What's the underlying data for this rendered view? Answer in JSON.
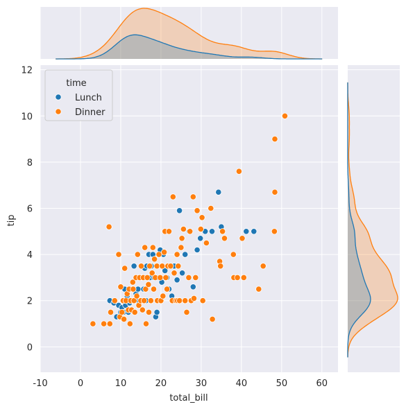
{
  "chart_data": {
    "type": "scatter",
    "kind": "jointplot",
    "xlabel": "total_bill",
    "ylabel": "tip",
    "xlim": [
      -10,
      64
    ],
    "ylim": [
      -1.1,
      12.2
    ],
    "xticks": [
      -10,
      0,
      10,
      20,
      30,
      40,
      50,
      60
    ],
    "yticks": [
      0,
      2,
      4,
      6,
      8,
      10,
      12
    ],
    "grid": true,
    "legend": {
      "title": "time",
      "placement": "top-left",
      "entries": [
        "Lunch",
        "Dinner"
      ]
    },
    "colors": {
      "Lunch": "#1f77b4",
      "Dinner": "#ff7f0e",
      "background": "#eaeaf2",
      "grid": "#ffffff"
    },
    "series": [
      {
        "name": "Lunch",
        "points": [
          [
            7.3,
            2.0
          ],
          [
            8.3,
            1.9
          ],
          [
            9.0,
            1.3
          ],
          [
            9.5,
            1.8
          ],
          [
            10.0,
            1.5
          ],
          [
            10.3,
            1.7
          ],
          [
            10.5,
            2.0
          ],
          [
            10.7,
            1.5
          ],
          [
            11.0,
            2.5
          ],
          [
            11.2,
            1.8
          ],
          [
            11.4,
            2.0
          ],
          [
            11.6,
            2.2
          ],
          [
            11.9,
            1.5
          ],
          [
            12.0,
            2.0
          ],
          [
            12.2,
            1.9
          ],
          [
            12.4,
            2.5
          ],
          [
            12.6,
            1.6
          ],
          [
            12.9,
            2.0
          ],
          [
            13.0,
            2.0
          ],
          [
            13.3,
            3.5
          ],
          [
            13.5,
            2.0
          ],
          [
            13.8,
            2.3
          ],
          [
            14.0,
            2.0
          ],
          [
            14.3,
            2.5
          ],
          [
            14.5,
            2.0
          ],
          [
            15.0,
            2.0
          ],
          [
            15.4,
            3.0
          ],
          [
            15.7,
            2.5
          ],
          [
            16.0,
            3.4
          ],
          [
            16.3,
            2.0
          ],
          [
            16.5,
            3.5
          ],
          [
            17.0,
            4.0
          ],
          [
            17.3,
            3.0
          ],
          [
            17.6,
            3.5
          ],
          [
            18.0,
            4.0
          ],
          [
            18.3,
            3.0
          ],
          [
            18.7,
            1.3
          ],
          [
            19.0,
            1.5
          ],
          [
            19.4,
            3.0
          ],
          [
            19.8,
            4.2
          ],
          [
            20.2,
            2.8
          ],
          [
            20.6,
            4.0
          ],
          [
            21.0,
            3.3
          ],
          [
            21.5,
            3.0
          ],
          [
            22.0,
            2.5
          ],
          [
            22.7,
            2.2
          ],
          [
            23.3,
            3.5
          ],
          [
            24.0,
            2.9
          ],
          [
            24.6,
            5.9
          ],
          [
            25.3,
            3.2
          ],
          [
            26.0,
            4.0
          ],
          [
            27.0,
            5.0
          ],
          [
            28.0,
            2.6
          ],
          [
            29.0,
            4.2
          ],
          [
            29.8,
            4.7
          ],
          [
            31.0,
            5.0
          ],
          [
            32.7,
            5.0
          ],
          [
            34.3,
            6.7
          ],
          [
            35.0,
            5.2
          ],
          [
            41.2,
            5.0
          ],
          [
            43.1,
            5.0
          ]
        ]
      },
      {
        "name": "Dinner",
        "points": [
          [
            3.1,
            1.0
          ],
          [
            5.8,
            1.0
          ],
          [
            7.1,
            5.2
          ],
          [
            7.3,
            1.0
          ],
          [
            7.5,
            1.5
          ],
          [
            8.5,
            2.0
          ],
          [
            9.5,
            4.0
          ],
          [
            9.8,
            1.3
          ],
          [
            10.0,
            2.6
          ],
          [
            10.3,
            1.5
          ],
          [
            10.6,
            2.0
          ],
          [
            10.8,
            1.2
          ],
          [
            11.0,
            3.4
          ],
          [
            11.3,
            2.0
          ],
          [
            11.6,
            2.3
          ],
          [
            11.9,
            1.6
          ],
          [
            12.1,
            2.5
          ],
          [
            12.3,
            1.0
          ],
          [
            12.5,
            2.0
          ],
          [
            12.7,
            1.6
          ],
          [
            13.0,
            2.8
          ],
          [
            13.1,
            2.5
          ],
          [
            13.3,
            2.0
          ],
          [
            13.5,
            1.5
          ],
          [
            13.8,
            3.0
          ],
          [
            14.0,
            2.2
          ],
          [
            14.2,
            4.0
          ],
          [
            14.5,
            1.8
          ],
          [
            14.7,
            3.0
          ],
          [
            15.0,
            2.0
          ],
          [
            15.1,
            3.5
          ],
          [
            15.4,
            1.6
          ],
          [
            15.6,
            3.0
          ],
          [
            15.8,
            2.0
          ],
          [
            16.0,
            4.3
          ],
          [
            16.2,
            2.5
          ],
          [
            16.3,
            1.0
          ],
          [
            16.6,
            3.0
          ],
          [
            16.9,
            2.7
          ],
          [
            17.0,
            1.5
          ],
          [
            17.2,
            3.5
          ],
          [
            17.5,
            2.0
          ],
          [
            17.8,
            3.2
          ],
          [
            18.0,
            4.3
          ],
          [
            18.2,
            2.5
          ],
          [
            18.4,
            3.8
          ],
          [
            18.6,
            3.0
          ],
          [
            19.0,
            3.5
          ],
          [
            19.1,
            2.0
          ],
          [
            19.5,
            4.0
          ],
          [
            19.8,
            3.0
          ],
          [
            20.0,
            2.0
          ],
          [
            20.3,
            3.5
          ],
          [
            20.5,
            2.2
          ],
          [
            20.8,
            4.1
          ],
          [
            21.0,
            5.0
          ],
          [
            21.2,
            3.0
          ],
          [
            21.5,
            2.5
          ],
          [
            21.7,
            3.5
          ],
          [
            22.0,
            5.0
          ],
          [
            22.4,
            3.5
          ],
          [
            22.8,
            2.0
          ],
          [
            23.0,
            6.5
          ],
          [
            23.3,
            3.2
          ],
          [
            23.7,
            2.0
          ],
          [
            24.0,
            4.0
          ],
          [
            24.1,
            2.0
          ],
          [
            24.3,
            3.5
          ],
          [
            24.6,
            2.0
          ],
          [
            25.0,
            4.3
          ],
          [
            25.2,
            4.7
          ],
          [
            25.6,
            5.1
          ],
          [
            26.0,
            2.0
          ],
          [
            26.4,
            1.5
          ],
          [
            26.9,
            3.0
          ],
          [
            27.2,
            5.0
          ],
          [
            27.5,
            2.0
          ],
          [
            28.0,
            6.5
          ],
          [
            28.2,
            2.1
          ],
          [
            28.6,
            3.0
          ],
          [
            29.0,
            5.9
          ],
          [
            29.9,
            5.1
          ],
          [
            30.2,
            5.6
          ],
          [
            30.4,
            2.0
          ],
          [
            31.3,
            4.5
          ],
          [
            32.4,
            6.0
          ],
          [
            32.8,
            1.2
          ],
          [
            34.6,
            3.7
          ],
          [
            34.8,
            3.5
          ],
          [
            35.3,
            5.0
          ],
          [
            35.8,
            4.7
          ],
          [
            38.0,
            4.0
          ],
          [
            38.1,
            3.0
          ],
          [
            39.0,
            3.0
          ],
          [
            39.4,
            7.6
          ],
          [
            40.2,
            4.7
          ],
          [
            40.6,
            3.0
          ],
          [
            44.3,
            2.5
          ],
          [
            45.4,
            3.5
          ],
          [
            48.2,
            5.0
          ],
          [
            48.3,
            6.7
          ],
          [
            48.3,
            9.0
          ],
          [
            50.8,
            10.0
          ]
        ]
      }
    ]
  }
}
